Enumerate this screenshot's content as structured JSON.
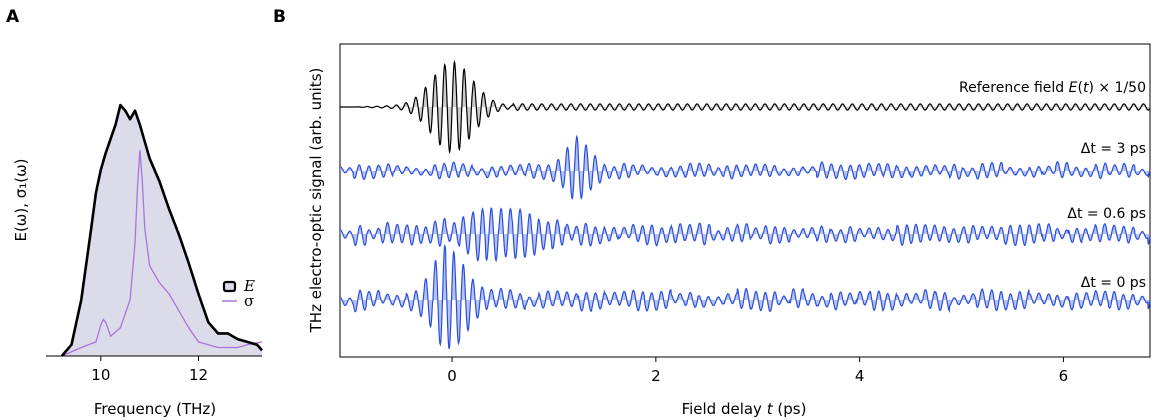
{
  "panels": {
    "a_letter": "A",
    "b_letter": "B"
  },
  "colors": {
    "E_line": "#000000",
    "E_fill": "#dcdbe9",
    "sigma_line": "#a874dd",
    "signal_line": "#2a4fe0",
    "signal_fill": "#9aa8e8",
    "reference_line": "#000000"
  },
  "chart_data": [
    {
      "type": "area",
      "panel": "A",
      "xlabel": "Frequency (THz)",
      "ylabel": "E(ω), σ₁(ω)",
      "xlim": [
        9,
        13.3
      ],
      "ylim": [
        0,
        1.05
      ],
      "xticks": [
        10,
        12
      ],
      "xtick_labels": [
        "10",
        "12"
      ],
      "legend": {
        "placement": "right",
        "entries": [
          "E",
          "σ"
        ]
      },
      "series": [
        {
          "name": "E",
          "style": "filled-line",
          "x": [
            9.2,
            9.4,
            9.6,
            9.8,
            9.9,
            10.0,
            10.1,
            10.2,
            10.3,
            10.4,
            10.5,
            10.6,
            10.7,
            10.8,
            10.9,
            11.0,
            11.2,
            11.4,
            11.6,
            11.8,
            12.0,
            12.2,
            12.4,
            12.6,
            12.8,
            13.0,
            13.2,
            13.3
          ],
          "y": [
            0.0,
            0.04,
            0.2,
            0.45,
            0.58,
            0.66,
            0.72,
            0.77,
            0.82,
            0.89,
            0.87,
            0.84,
            0.87,
            0.82,
            0.76,
            0.7,
            0.62,
            0.52,
            0.43,
            0.33,
            0.22,
            0.12,
            0.08,
            0.08,
            0.06,
            0.05,
            0.04,
            0.02
          ]
        },
        {
          "name": "σ",
          "style": "line",
          "x": [
            9.2,
            9.6,
            9.9,
            10.0,
            10.05,
            10.1,
            10.2,
            10.4,
            10.6,
            10.7,
            10.75,
            10.8,
            10.85,
            10.9,
            11.0,
            11.2,
            11.4,
            11.6,
            11.8,
            12.0,
            12.2,
            12.4,
            12.6,
            12.8,
            13.0,
            13.3
          ],
          "y": [
            0.0,
            0.03,
            0.05,
            0.11,
            0.13,
            0.12,
            0.07,
            0.1,
            0.2,
            0.4,
            0.6,
            0.73,
            0.62,
            0.45,
            0.32,
            0.26,
            0.22,
            0.16,
            0.1,
            0.05,
            0.04,
            0.03,
            0.03,
            0.03,
            0.04,
            0.05
          ]
        }
      ]
    },
    {
      "type": "line",
      "panel": "B",
      "xlabel": "Field delay t (ps)",
      "ylabel": "THz electro-optic signal (arb. units)",
      "xlim": [
        -1.1,
        6.85
      ],
      "xticks": [
        0,
        2,
        4,
        6
      ],
      "xtick_labels": [
        "0",
        "2",
        "4",
        "6"
      ],
      "traces": [
        {
          "name": "Reference field E(t) × 1/50",
          "label_parts": {
            "prefix": "Reference field ",
            "var": "E",
            "mid": "(",
            "arg": "t",
            "suffix": ") × 1/50"
          },
          "style": "line",
          "frequency_thz": 10.5,
          "packet": {
            "center_ps": 0.0,
            "width_ps": 0.28,
            "amplitude": 1.0
          },
          "tail_amplitude": 0.07
        },
        {
          "name": "Δt = 3 ps",
          "style": "filled-line",
          "frequency_thz": 10.8,
          "packet": {
            "center_ps": 1.25,
            "width_ps": 0.16,
            "amplitude": 0.72
          },
          "noise_amplitude": 0.14
        },
        {
          "name": "Δt = 0.6 ps",
          "style": "filled-line",
          "frequency_thz": 10.8,
          "packet": {
            "center_ps": 0.5,
            "width_ps": 0.45,
            "amplitude": 0.52
          },
          "noise_amplitude": 0.18
        },
        {
          "name": "Δt = 0 ps",
          "style": "filled-line",
          "frequency_thz": 10.8,
          "packet": {
            "center_ps": -0.02,
            "width_ps": 0.2,
            "amplitude": 0.95
          },
          "noise_amplitude": 0.14
        }
      ]
    }
  ]
}
